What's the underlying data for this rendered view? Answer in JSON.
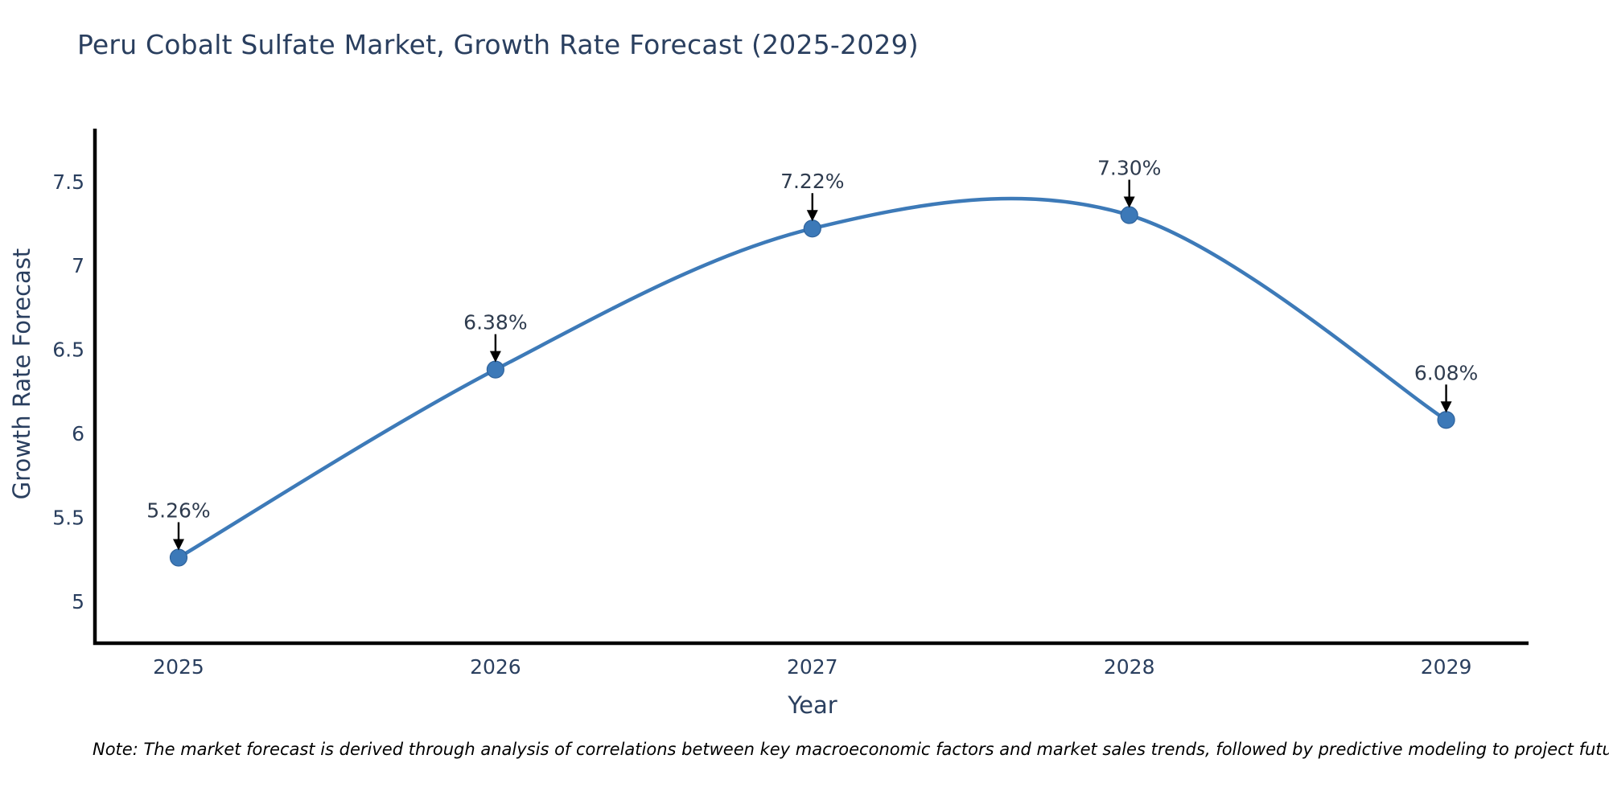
{
  "page": {
    "background": "#ffffff"
  },
  "chart_data": {
    "type": "line",
    "title": "Peru Cobalt Sulfate Market, Growth Rate Forecast (2025-2029)",
    "xlabel": "Year",
    "ylabel": "Growth Rate Forecast",
    "x": [
      2025,
      2026,
      2027,
      2028,
      2029
    ],
    "values": [
      5.26,
      6.38,
      7.22,
      7.3,
      6.08
    ],
    "point_labels": [
      "5.26%",
      "6.38%",
      "7.22%",
      "7.30%",
      "6.08%"
    ],
    "x_ticks": [
      "2025",
      "2026",
      "2027",
      "2028",
      "2029"
    ],
    "y_ticks": [
      5,
      5.5,
      6,
      6.5,
      7,
      7.5
    ],
    "xlim": [
      2024.736,
      2029.26
    ],
    "ylim": [
      4.75,
      7.815
    ],
    "line_shape": "spline",
    "grid": false,
    "legend": "none",
    "note": "Note: The market forecast is derived through analysis of correlations between key macroeconomic factors and market sales trends, followed by predictive modeling to project future sales",
    "colors": {
      "line": "#3d7ab8",
      "marker": "#3c79b8",
      "marker_edge": "#2f639c",
      "title_text": "#2a3f5f",
      "tick_text": "#2a3f5f",
      "axis_title_text": "#2a3f5f",
      "annotation_text": "#2e3b4e",
      "annotation_arrow": "#000000",
      "axis_line": "#000000",
      "note_text": "#000000"
    }
  }
}
